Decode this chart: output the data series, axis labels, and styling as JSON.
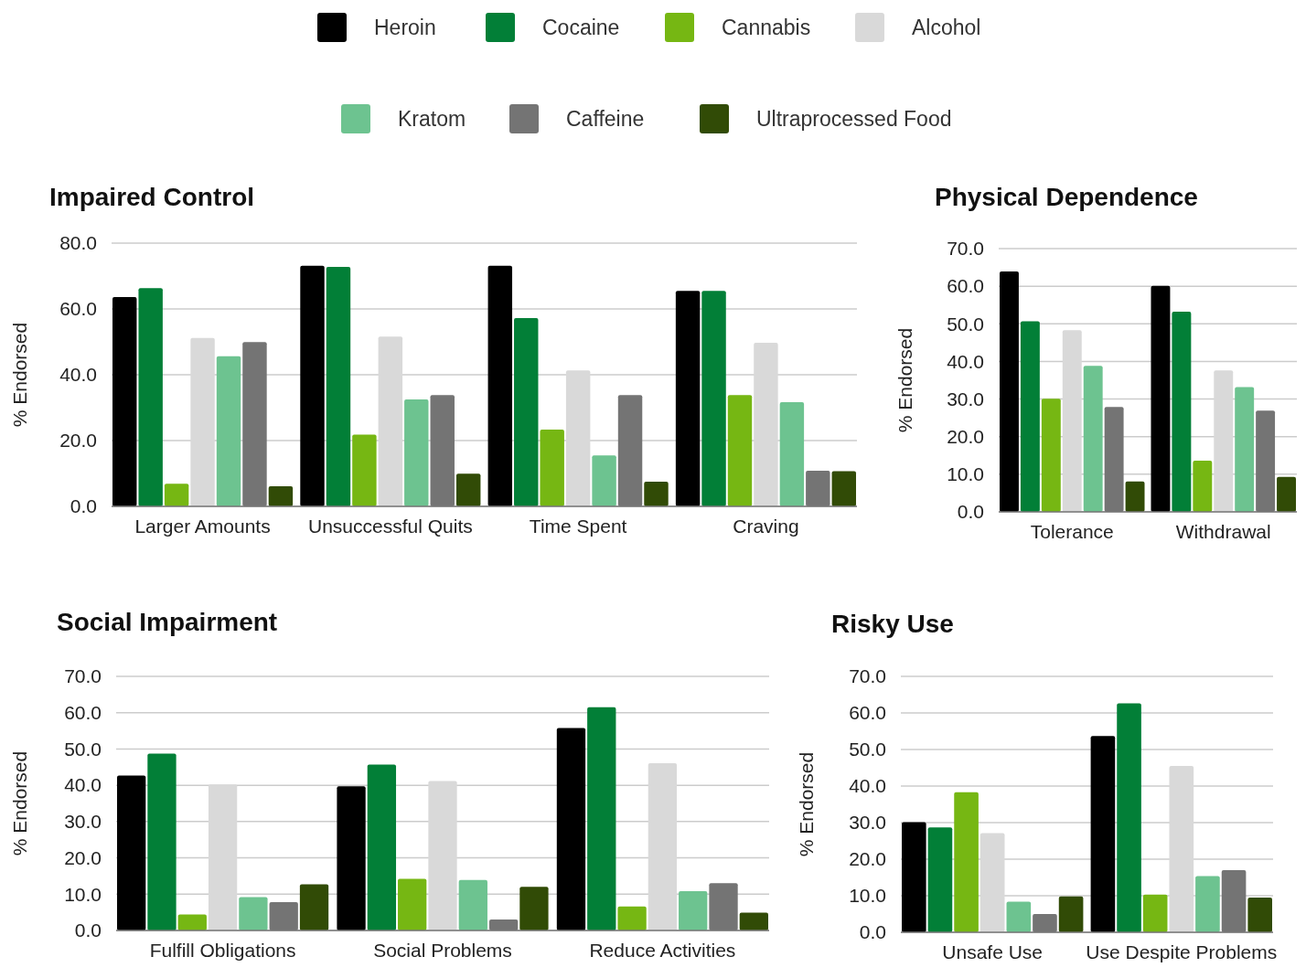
{
  "chart_data": [
    {
      "type": "bar",
      "title": "Impaired Control",
      "ylabel": "% Endorsed",
      "categories": [
        "Larger Amounts",
        "Unsuccessful Quits",
        "Time Spent",
        "Craving"
      ],
      "ylim": [
        0,
        80
      ],
      "yticks": [
        {
          "value": 0,
          "label": "0.0"
        },
        {
          "value": 20,
          "label": "20.0"
        },
        {
          "value": 40,
          "label": "40.0"
        },
        {
          "value": 60,
          "label": "60.0"
        },
        {
          "value": 80,
          "label": "80.0"
        }
      ],
      "grid": "y",
      "legend": "top",
      "series": [
        {
          "name": "Heroin",
          "color": "#000000",
          "values": [
            63.6,
            73.1,
            73.1,
            65.5
          ]
        },
        {
          "name": "Cocaine",
          "color": "#027f37",
          "values": [
            66.3,
            72.8,
            57.2,
            65.5
          ]
        },
        {
          "name": "Cannabis",
          "color": "#76b713",
          "values": [
            6.9,
            21.8,
            23.3,
            33.8
          ]
        },
        {
          "name": "Alcohol",
          "color": "#d9d9d9",
          "values": [
            51.2,
            51.6,
            41.3,
            49.7
          ]
        },
        {
          "name": "Kratom",
          "color": "#6dc390",
          "values": [
            45.6,
            32.5,
            15.5,
            31.7
          ]
        },
        {
          "name": "Caffeine",
          "color": "#747474",
          "values": [
            49.9,
            33.8,
            33.8,
            10.8
          ]
        },
        {
          "name": "Ultraprocessed Food",
          "color": "#314b06",
          "values": [
            6.1,
            9.9,
            7.5,
            10.7
          ]
        }
      ]
    },
    {
      "type": "bar",
      "title": "Physical Dependence",
      "ylabel": "% Endorsed",
      "categories": [
        "Tolerance",
        "Withdrawal"
      ],
      "ylim": [
        0,
        70
      ],
      "yticks": [
        {
          "value": 0,
          "label": "0.0"
        },
        {
          "value": 10,
          "label": "10.0"
        },
        {
          "value": 20,
          "label": "20.0"
        },
        {
          "value": 30,
          "label": "30.0"
        },
        {
          "value": 40,
          "label": "40.0"
        },
        {
          "value": 50,
          "label": "50.0"
        },
        {
          "value": 60,
          "label": "60.0"
        },
        {
          "value": 70,
          "label": "70.0"
        }
      ],
      "grid": "y",
      "series": [
        {
          "color": "#000000",
          "values": [
            63.9,
            60.1
          ]
        },
        {
          "color": "#027f37",
          "values": [
            50.7,
            53.2
          ]
        },
        {
          "color": "#76b713",
          "values": [
            30.1,
            13.6
          ]
        },
        {
          "color": "#d9d9d9",
          "values": [
            48.3,
            37.6
          ]
        },
        {
          "color": "#6dc390",
          "values": [
            38.8,
            33.2
          ]
        },
        {
          "color": "#747474",
          "values": [
            27.9,
            26.9
          ]
        },
        {
          "color": "#314b06",
          "values": [
            8.1,
            9.3
          ]
        }
      ]
    },
    {
      "type": "bar",
      "title": "Social Impairment",
      "ylabel": "% Endorsed",
      "categories": [
        "Fulfill Obligations",
        "Social Problems",
        "Reduce Activities"
      ],
      "ylim": [
        0,
        70
      ],
      "yticks": [
        {
          "value": 0,
          "label": "0.0"
        },
        {
          "value": 10,
          "label": "10.0"
        },
        {
          "value": 20,
          "label": "20.0"
        },
        {
          "value": 30,
          "label": "30.0"
        },
        {
          "value": 40,
          "label": "40.0"
        },
        {
          "value": 50,
          "label": "50.0"
        },
        {
          "value": 60,
          "label": "60.0"
        },
        {
          "value": 70,
          "label": "70.0"
        }
      ],
      "grid": "y",
      "series": [
        {
          "color": "#000000",
          "values": [
            42.7,
            39.7,
            55.8
          ]
        },
        {
          "color": "#027f37",
          "values": [
            48.7,
            45.7,
            61.5
          ]
        },
        {
          "color": "#76b713",
          "values": [
            4.4,
            14.2,
            6.6
          ]
        },
        {
          "color": "#d9d9d9",
          "values": [
            40.2,
            41.2,
            46.1
          ]
        },
        {
          "color": "#6dc390",
          "values": [
            9.2,
            13.9,
            10.8
          ]
        },
        {
          "color": "#747474",
          "values": [
            7.8,
            3.0,
            13.0
          ]
        },
        {
          "color": "#314b06",
          "values": [
            12.7,
            12.0,
            4.9
          ]
        }
      ]
    },
    {
      "type": "bar",
      "title": "Risky Use",
      "ylabel": "% Endorsed",
      "categories": [
        "Unsafe Use",
        "Use Despite Problems"
      ],
      "ylim": [
        0,
        70
      ],
      "yticks": [
        {
          "value": 0,
          "label": "0.0"
        },
        {
          "value": 10,
          "label": "10.0"
        },
        {
          "value": 20,
          "label": "20.0"
        },
        {
          "value": 30,
          "label": "30.0"
        },
        {
          "value": 40,
          "label": "40.0"
        },
        {
          "value": 50,
          "label": "50.0"
        },
        {
          "value": 60,
          "label": "60.0"
        },
        {
          "value": 70,
          "label": "70.0"
        }
      ],
      "grid": "y",
      "series": [
        {
          "color": "#000000",
          "values": [
            30.1,
            53.7
          ]
        },
        {
          "color": "#027f37",
          "values": [
            28.7,
            62.6
          ]
        },
        {
          "color": "#76b713",
          "values": [
            38.3,
            10.3
          ]
        },
        {
          "color": "#d9d9d9",
          "values": [
            27.1,
            45.5
          ]
        },
        {
          "color": "#6dc390",
          "values": [
            8.4,
            15.4
          ]
        },
        {
          "color": "#747474",
          "values": [
            5.0,
            17.0
          ]
        },
        {
          "color": "#314b06",
          "values": [
            9.8,
            9.5
          ]
        }
      ]
    }
  ]
}
